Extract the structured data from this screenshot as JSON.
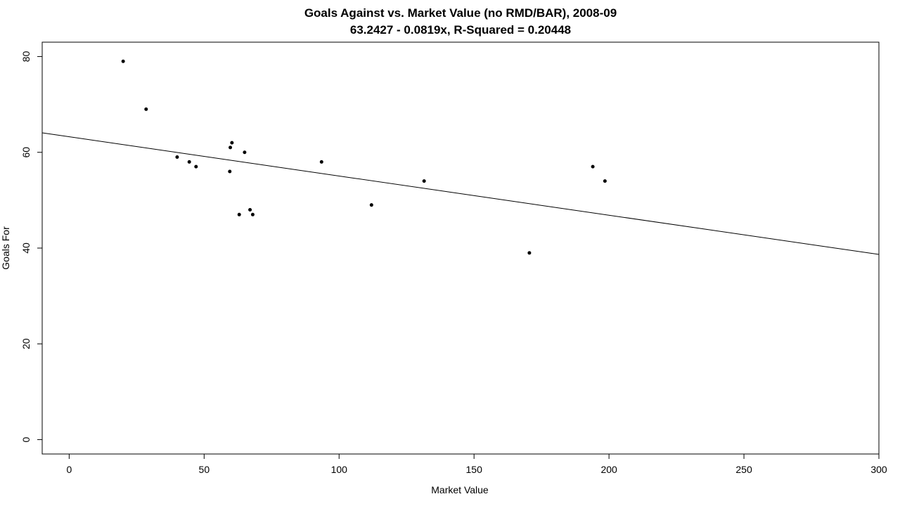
{
  "chart_data": {
    "type": "scatter",
    "title": "Goals Against vs. Market Value (no RMD/BAR), 2008-09",
    "subtitle": "63.2427 - 0.0819x, R-Squared = 0.20448",
    "xlabel": "Market Value",
    "ylabel": "Goals For",
    "xlim": [
      -10,
      300
    ],
    "ylim": [
      -3,
      83
    ],
    "xticks": [
      0,
      50,
      100,
      150,
      200,
      250,
      300
    ],
    "yticks": [
      0,
      20,
      40,
      60,
      80
    ],
    "grid": false,
    "legend": "none",
    "regression": {
      "intercept": 63.2427,
      "slope": -0.0819
    },
    "points": [
      {
        "x": 20,
        "y": 79
      },
      {
        "x": 28.5,
        "y": 69
      },
      {
        "x": 40,
        "y": 59
      },
      {
        "x": 44.5,
        "y": 58
      },
      {
        "x": 47,
        "y": 57
      },
      {
        "x": 59.5,
        "y": 56
      },
      {
        "x": 59.7,
        "y": 61
      },
      {
        "x": 60.3,
        "y": 62
      },
      {
        "x": 63,
        "y": 47
      },
      {
        "x": 65,
        "y": 60
      },
      {
        "x": 67,
        "y": 48
      },
      {
        "x": 68,
        "y": 47
      },
      {
        "x": 93.5,
        "y": 58
      },
      {
        "x": 112,
        "y": 49
      },
      {
        "x": 131.5,
        "y": 54
      },
      {
        "x": 170.5,
        "y": 39
      },
      {
        "x": 194,
        "y": 57
      },
      {
        "x": 198.5,
        "y": 54
      }
    ]
  }
}
